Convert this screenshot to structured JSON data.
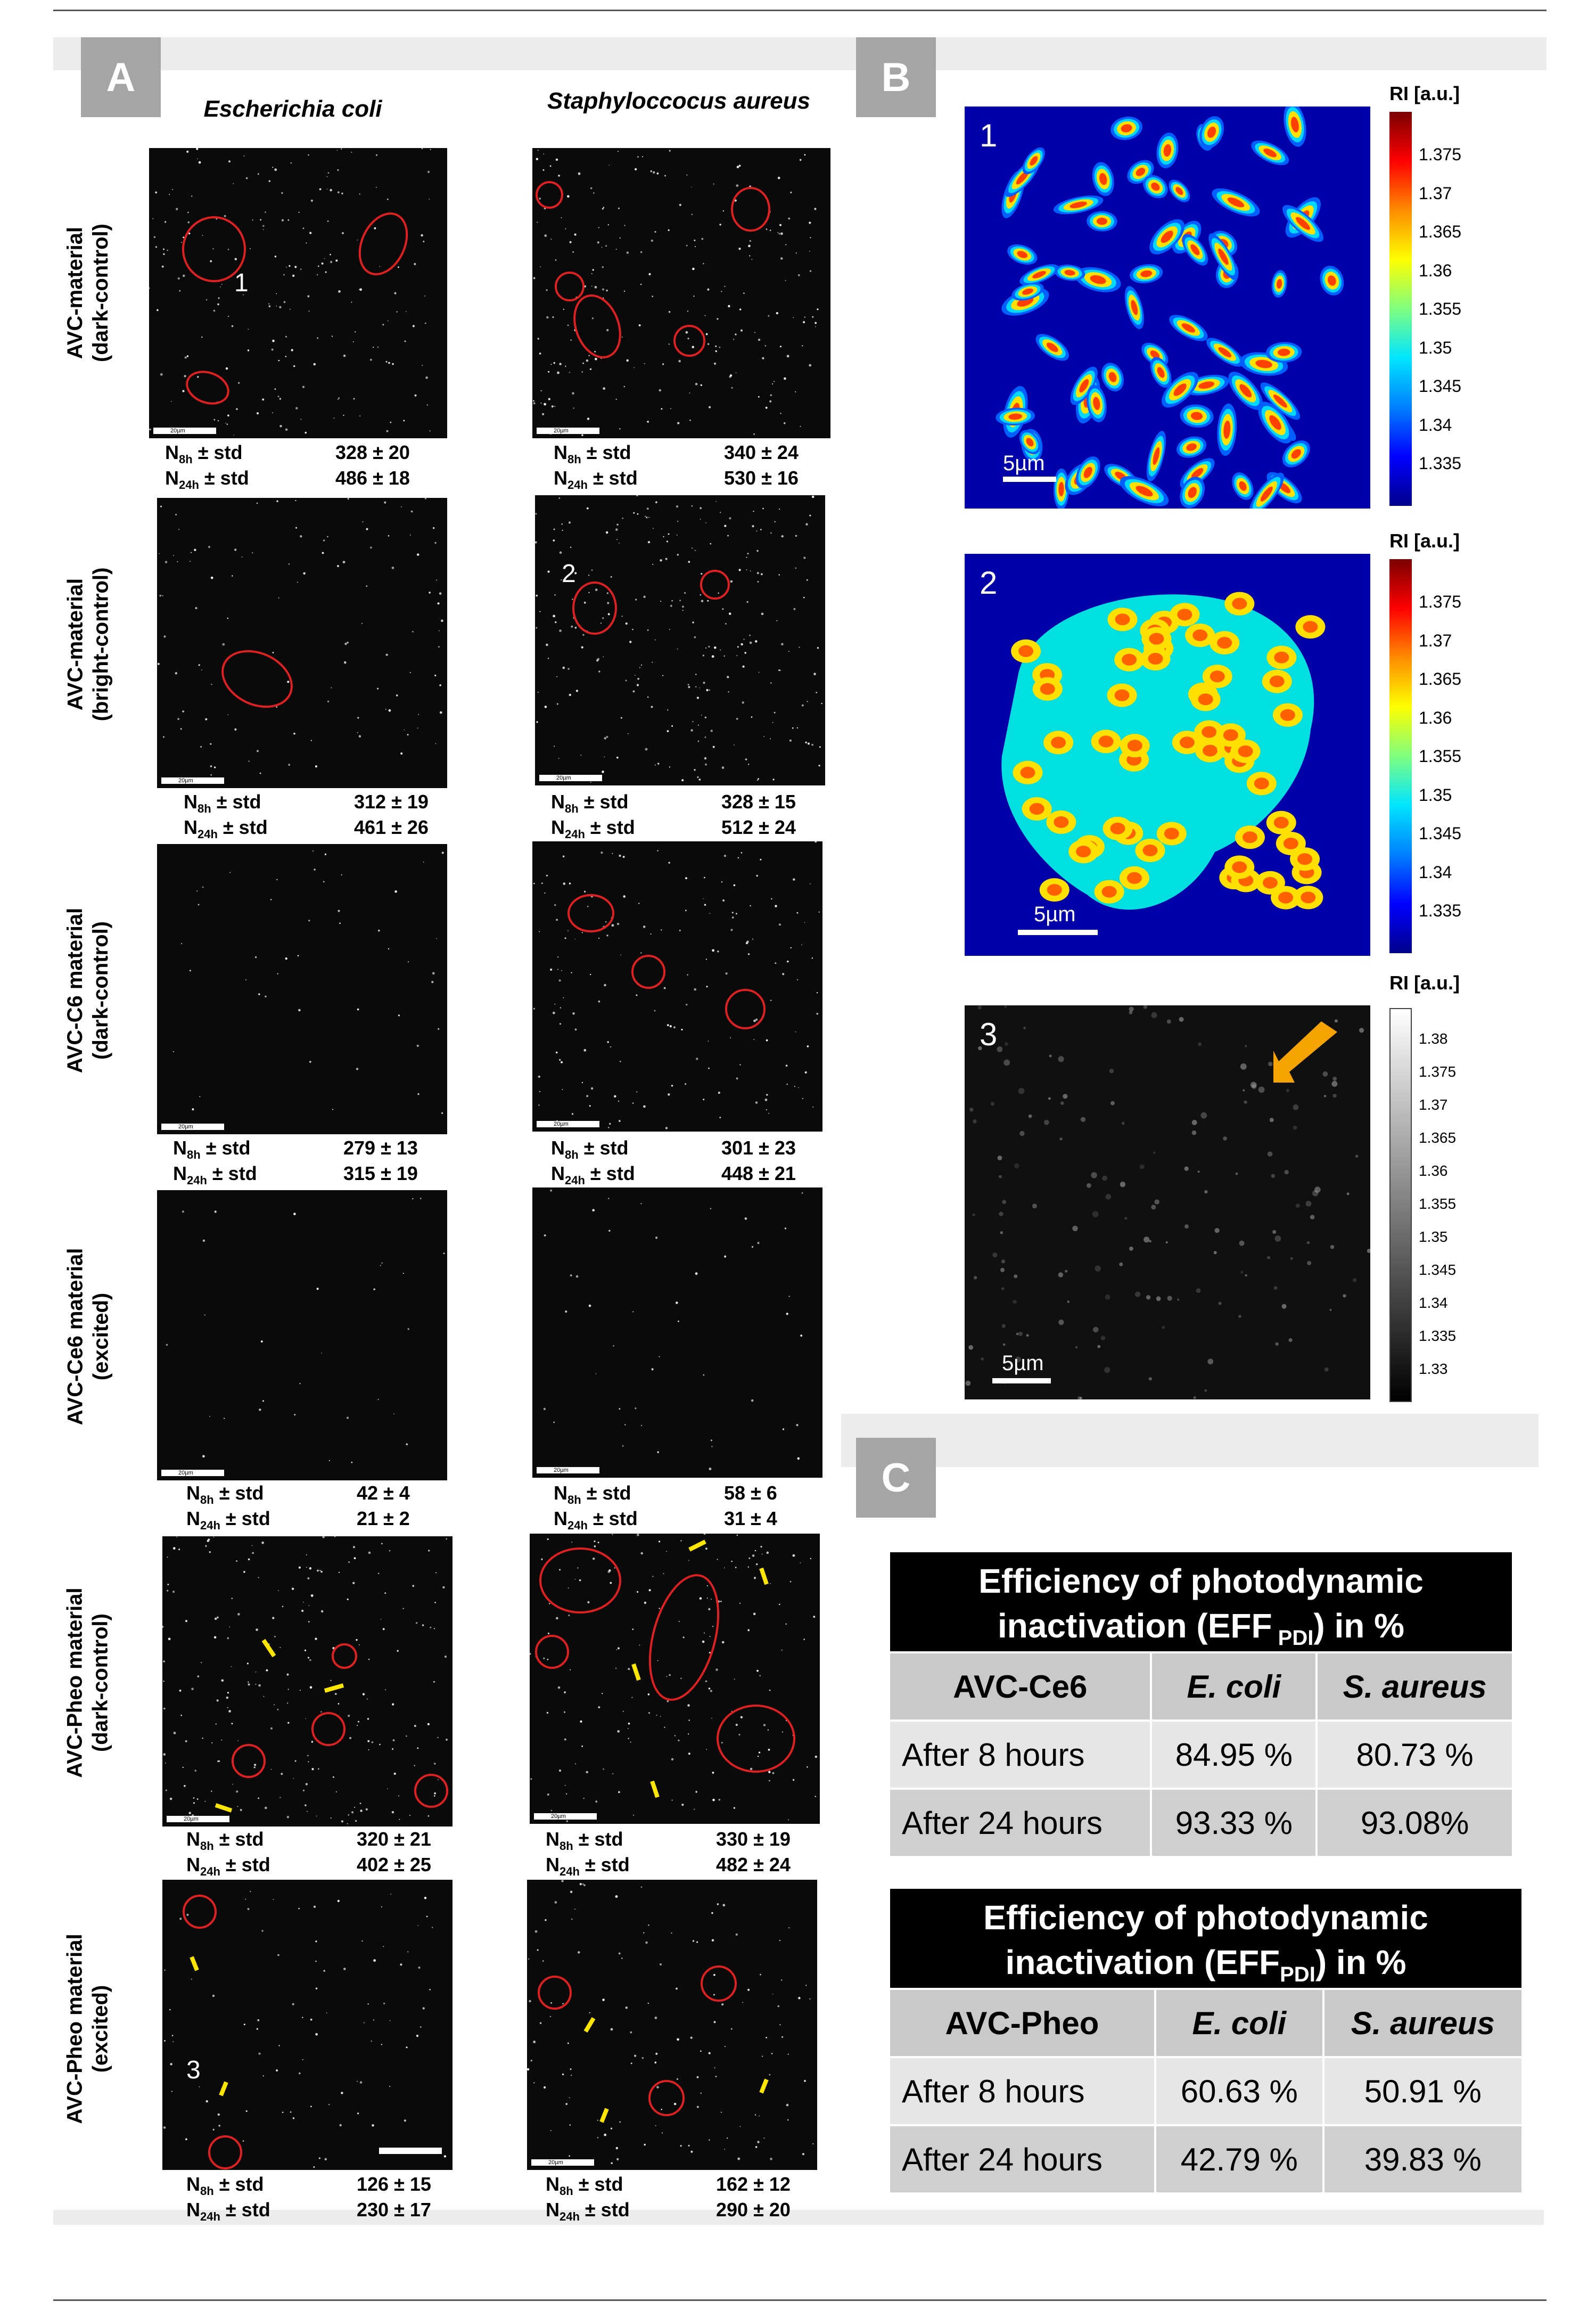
{
  "panels": {
    "a": "A",
    "b": "B",
    "c": "C"
  },
  "column_headers": [
    "Escherichia coli",
    "Staphyloccocus aureus"
  ],
  "row_labels": [
    [
      "AVC-material",
      "(dark-control)"
    ],
    [
      "AVC-material",
      "(bright-control)"
    ],
    [
      "AVC-C6 material",
      "(dark-control)"
    ],
    [
      "AVC-Ce6 material",
      "(excited)"
    ],
    [
      "AVC-Pheo material",
      "(dark-control)"
    ],
    [
      "AVC-Pheo material",
      "(excited)"
    ]
  ],
  "stat_labels": {
    "n": "N",
    "sub8": "8h",
    "sub24": "24h",
    "std": "± std"
  },
  "scalebar_label": "20µm",
  "micrograph_markers": {
    "one": "1",
    "two": "2",
    "three": "3"
  },
  "stats": [
    {
      "ecoli": [
        "328 ± 20",
        "486 ± 18"
      ],
      "saureus": [
        "340 ± 24",
        "530 ± 16"
      ]
    },
    {
      "ecoli": [
        "312 ± 19",
        "461 ± 26"
      ],
      "saureus": [
        "328 ± 15",
        "512 ± 24"
      ]
    },
    {
      "ecoli": [
        "279 ± 13",
        "315 ± 19"
      ],
      "saureus": [
        "301 ± 23",
        "448 ± 21"
      ]
    },
    {
      "ecoli": [
        "42 ± 4",
        "21 ± 2"
      ],
      "saureus": [
        "58 ± 6",
        "31 ± 4"
      ]
    },
    {
      "ecoli": [
        "320 ± 21",
        "402 ± 25"
      ],
      "saureus": [
        "330 ± 19",
        "482 ± 24"
      ]
    },
    {
      "ecoli": [
        "126 ± 15",
        "230 ± 17"
      ],
      "saureus": [
        "162 ± 12",
        "290 ± 20"
      ]
    }
  ],
  "ri_maps": {
    "colorbar_title": "RI [a.u.]",
    "color_ticks": [
      "1.375",
      "1.37",
      "1.365",
      "1.36",
      "1.355",
      "1.35",
      "1.345",
      "1.34",
      "1.335"
    ],
    "gray_ticks": [
      "1.38",
      "1.375",
      "1.37",
      "1.365",
      "1.36",
      "1.355",
      "1.35",
      "1.345",
      "1.34",
      "1.335",
      "1.33"
    ],
    "scale": "5µm",
    "labels": [
      "1",
      "2",
      "3"
    ]
  },
  "tables": [
    {
      "title1": "Efficiency of photodynamic",
      "title2": "inactivation (EFF",
      "title_sub": " PDI",
      "title3": ") in %",
      "header": [
        "AVC-Ce6",
        "E. coli",
        "S. aureus"
      ],
      "rows": [
        [
          "After 8 hours",
          "84.95 %",
          "80.73 %"
        ],
        [
          "After 24 hours",
          "93.33 %",
          "93.08%"
        ]
      ]
    },
    {
      "title1": "Efficiency of photodynamic",
      "title2": "inactivation (EFF",
      "title_sub": "PDI",
      "title3": ") in %",
      "header": [
        "AVC-Pheo",
        "E.  coli",
        "S. aureus"
      ],
      "rows": [
        [
          "After 8 hours",
          "60.63 %",
          "50.91 %"
        ],
        [
          "After 24 hours",
          "42.79 %",
          "39.83 %"
        ]
      ]
    }
  ],
  "colors": {
    "red_circle": "#e02020",
    "yellow_arrow": "#ffe600",
    "orange_arrow": "#f5a300",
    "map_bg": "#0000a8"
  }
}
